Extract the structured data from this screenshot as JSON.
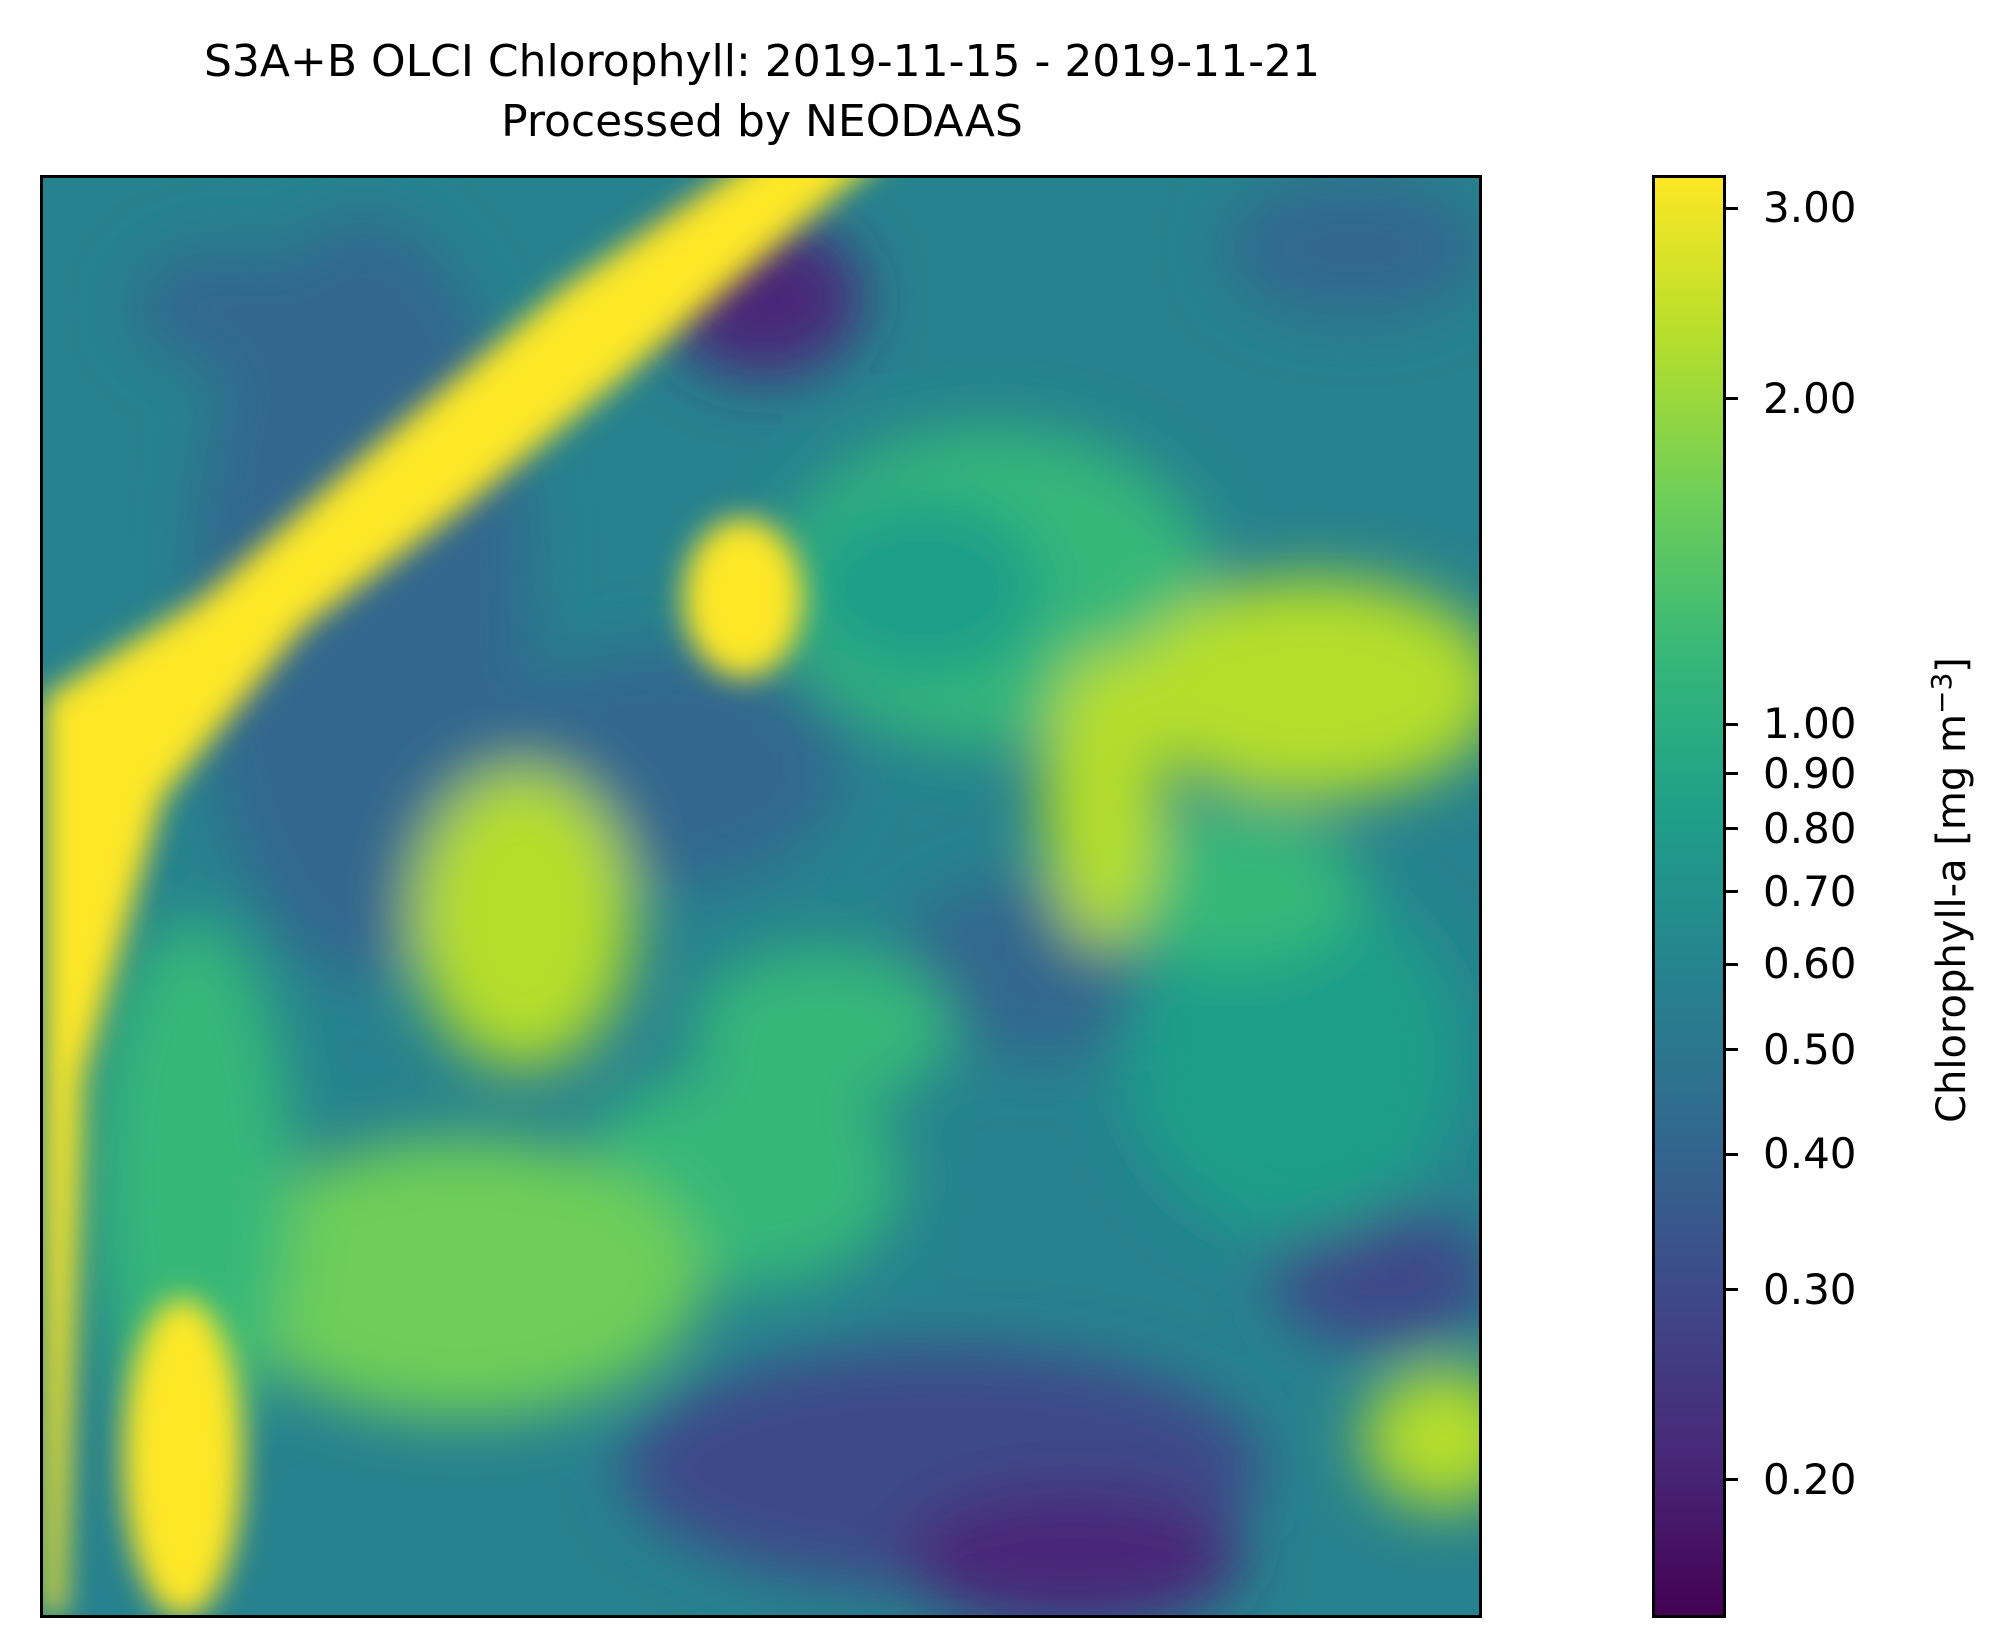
{
  "figure": {
    "title_line1": "S3A+B OLCI Chlorophyll: 2019-11-15 - 2019-11-21",
    "title_line2": "Processed by NEODAAS"
  },
  "colorbar": {
    "label_text": "Chlorophyll-a [mg m",
    "label_exponent": "−3",
    "label_suffix": "]",
    "scale": "log",
    "range": [
      0.15,
      3.2
    ],
    "colormap": "viridis",
    "ticks": [
      {
        "value": 3.0,
        "label": "3.00"
      },
      {
        "value": 2.0,
        "label": "2.00"
      },
      {
        "value": 1.0,
        "label": "1.00"
      },
      {
        "value": 0.9,
        "label": "0.90"
      },
      {
        "value": 0.8,
        "label": "0.80"
      },
      {
        "value": 0.7,
        "label": "0.70"
      },
      {
        "value": 0.6,
        "label": "0.60"
      },
      {
        "value": 0.5,
        "label": "0.50"
      },
      {
        "value": 0.4,
        "label": "0.40"
      },
      {
        "value": 0.3,
        "label": "0.30"
      },
      {
        "value": 0.2,
        "label": "0.20"
      }
    ]
  },
  "colors": {
    "viridis": [
      "#440154",
      "#482878",
      "#3e4989",
      "#31688e",
      "#26828e",
      "#1f9e89",
      "#35b779",
      "#6ece58",
      "#b5de2b",
      "#fde725"
    ]
  }
}
